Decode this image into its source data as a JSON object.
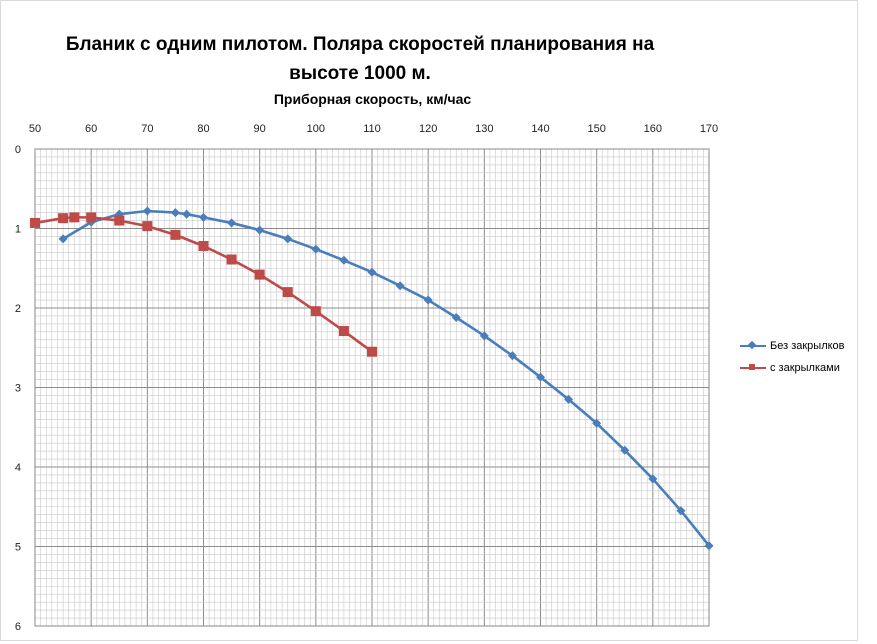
{
  "title_line1": "Бланик с одним пилотом. Поляра скоростей планирования на",
  "title_line2": "высоте 1000 м.",
  "xlabel": "Приборная скорость, км/час",
  "chart_data": {
    "type": "line",
    "title": "Бланик с одним пилотом. Поляра скоростей планирования на высоте 1000 м.",
    "xlabel": "Приборная скорость, км/час",
    "ylabel": "",
    "xlim": [
      50,
      170
    ],
    "ylim": [
      0,
      6
    ],
    "y_inverted": true,
    "x_axis_position": "top",
    "grid": true,
    "legend_position": "right",
    "xticks": [
      50,
      60,
      70,
      80,
      90,
      100,
      110,
      120,
      130,
      140,
      150,
      160,
      170
    ],
    "yticks": [
      0,
      1,
      2,
      3,
      4,
      5,
      6
    ],
    "series": [
      {
        "name": "Без закрылков",
        "color": "#4a7ebb",
        "marker": "diamond",
        "points": [
          [
            55,
            1.13
          ],
          [
            60,
            0.92
          ],
          [
            65,
            0.82
          ],
          [
            70,
            0.78
          ],
          [
            75,
            0.8
          ],
          [
            77,
            0.82
          ],
          [
            80,
            0.86
          ],
          [
            85,
            0.93
          ],
          [
            90,
            1.02
          ],
          [
            95,
            1.13
          ],
          [
            100,
            1.26
          ],
          [
            105,
            1.4
          ],
          [
            110,
            1.55
          ],
          [
            115,
            1.72
          ],
          [
            120,
            1.9
          ],
          [
            125,
            2.12
          ],
          [
            130,
            2.35
          ],
          [
            135,
            2.6
          ],
          [
            140,
            2.87
          ],
          [
            145,
            3.15
          ],
          [
            150,
            3.45
          ],
          [
            155,
            3.79
          ],
          [
            160,
            4.15
          ],
          [
            165,
            4.55
          ],
          [
            170,
            4.99
          ]
        ]
      },
      {
        "name": "с закрылками",
        "color": "#be4b48",
        "marker": "square",
        "points": [
          [
            50,
            0.93
          ],
          [
            55,
            0.87
          ],
          [
            57,
            0.86
          ],
          [
            60,
            0.86
          ],
          [
            65,
            0.9
          ],
          [
            70,
            0.97
          ],
          [
            75,
            1.08
          ],
          [
            80,
            1.22
          ],
          [
            85,
            1.39
          ],
          [
            90,
            1.58
          ],
          [
            95,
            1.8
          ],
          [
            100,
            2.04
          ],
          [
            105,
            2.29
          ],
          [
            110,
            2.55
          ]
        ]
      }
    ]
  }
}
